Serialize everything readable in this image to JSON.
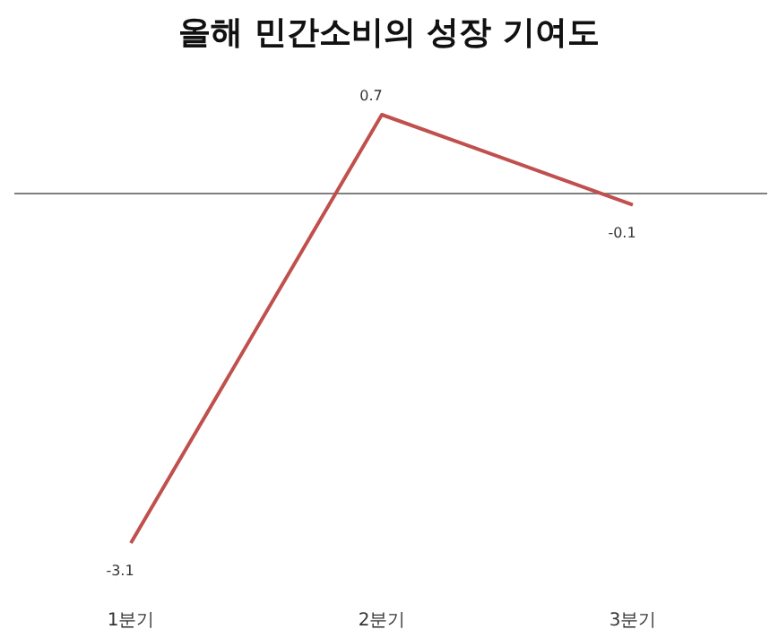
{
  "chart_data": {
    "type": "line",
    "title": "올해 민간소비의 성장 기여도",
    "categories": [
      "1분기",
      "2분기",
      "3분기"
    ],
    "series": [
      {
        "color": "#c0504d",
        "values": [
          -3.1,
          0.7,
          -0.1
        ]
      }
    ],
    "data_labels": true,
    "ref_lines": [
      {
        "axis": "y",
        "value": 0,
        "color": "#808080"
      }
    ],
    "marker": "none",
    "line_style": "solid"
  }
}
